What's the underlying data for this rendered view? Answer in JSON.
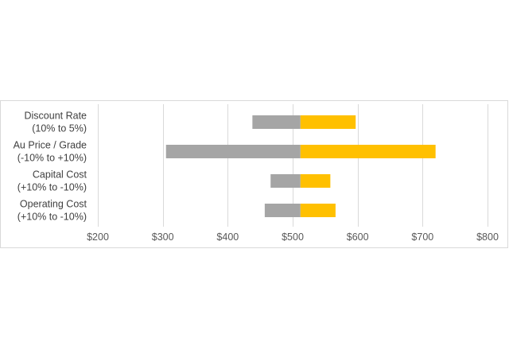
{
  "chart_data": {
    "type": "bar",
    "orientation": "horizontal-tornado",
    "base_value": 512,
    "categories": [
      [
        "Discount Rate",
        "(10% to 5%)"
      ],
      [
        "Au Price / Grade",
        "(-10% to +10%)"
      ],
      [
        "Capital Cost",
        "(+10% to -10%)"
      ],
      [
        "Operating Cost",
        "(+10% to -10%)"
      ]
    ],
    "series": [
      {
        "values": [
          438,
          305,
          466,
          457
        ],
        "color": "#a5a5a5"
      },
      {
        "values": [
          597,
          720,
          558,
          566
        ],
        "color": "#ffc000"
      }
    ],
    "xlim": [
      200,
      800
    ],
    "xticks": [
      200,
      300,
      400,
      500,
      600,
      700,
      800
    ],
    "xtick_labels": [
      "$200",
      "$300",
      "$400",
      "$500",
      "$600",
      "$700",
      "$800"
    ],
    "grid": "vertical",
    "legend": "none",
    "title": "",
    "xlabel": "",
    "ylabel": ""
  }
}
